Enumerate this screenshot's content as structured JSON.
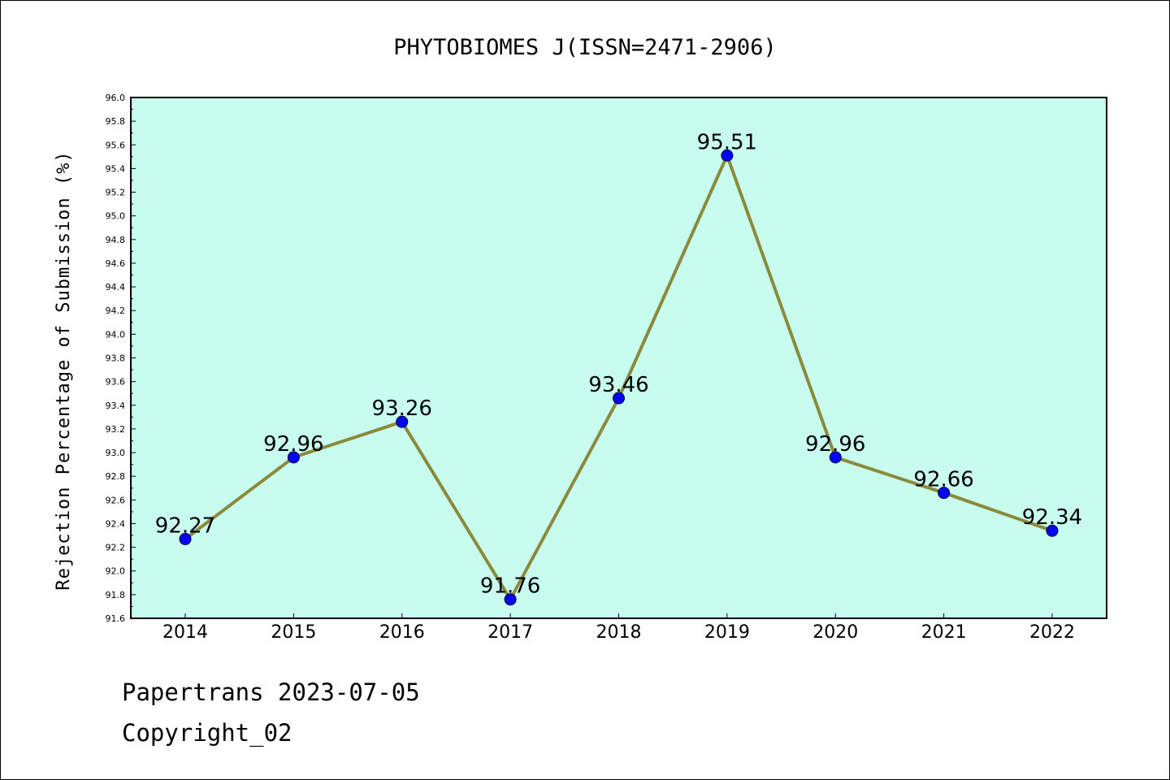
{
  "colors": {
    "plot_background": "#c8fcee",
    "line": "#8b8a3a",
    "marker": "#0000ff",
    "frame": "#000000"
  },
  "chart_data": {
    "type": "line",
    "title": "PHYTOBIOMES J(ISSN=2471-2906)",
    "xlabel": "",
    "ylabel": "Rejection Percentage of Submission (%)",
    "categories": [
      "2014",
      "2015",
      "2016",
      "2017",
      "2018",
      "2019",
      "2020",
      "2021",
      "2022"
    ],
    "values": [
      92.27,
      92.96,
      93.26,
      91.76,
      93.46,
      95.51,
      92.96,
      92.66,
      92.34
    ],
    "data_labels": [
      "92.27",
      "92.96",
      "93.26",
      "91.76",
      "93.46",
      "95.51",
      "92.96",
      "92.66",
      "92.34"
    ],
    "ylim": [
      91.6,
      96.0
    ],
    "yticks": [
      "91.6",
      "91.8",
      "92.0",
      "92.2",
      "92.4",
      "92.6",
      "92.8",
      "93.0",
      "93.2",
      "93.4",
      "93.6",
      "93.8",
      "94.0",
      "94.2",
      "94.4",
      "94.6",
      "94.8",
      "95.0",
      "95.2",
      "95.4",
      "95.6",
      "95.8",
      "96.0"
    ],
    "grid": false,
    "legend": "none"
  },
  "footer": {
    "line1": "Papertrans 2023-07-05",
    "line2": "Copyright_02"
  }
}
